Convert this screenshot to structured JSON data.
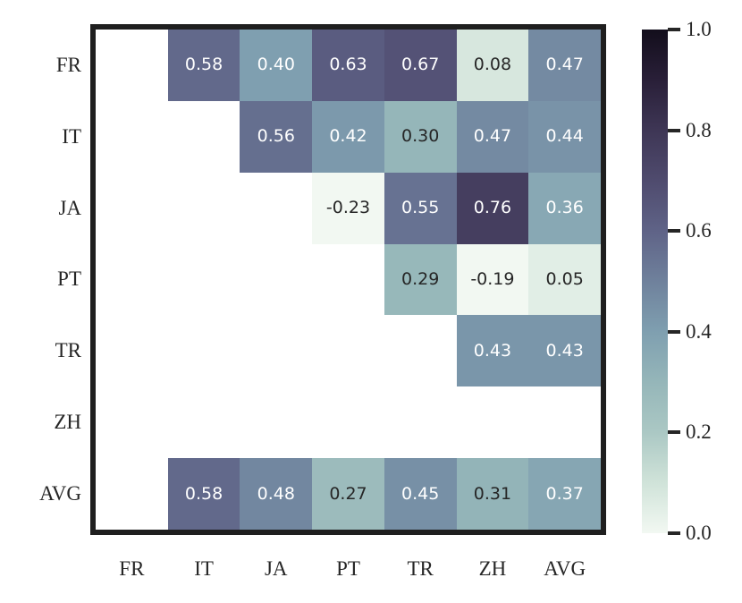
{
  "figure": {
    "background": "#ffffff",
    "spine_color": "#1f1f1f",
    "label_color": "#262626"
  },
  "chart_data": {
    "type": "heatmap",
    "title": "",
    "xlabel": "",
    "ylabel": "",
    "rows": [
      "FR",
      "IT",
      "JA",
      "PT",
      "TR",
      "ZH",
      "AVG"
    ],
    "columns": [
      "FR",
      "IT",
      "JA",
      "PT",
      "TR",
      "ZH",
      "AVG"
    ],
    "values": [
      [
        null,
        0.58,
        0.4,
        0.63,
        0.67,
        0.08,
        0.47
      ],
      [
        null,
        null,
        0.56,
        0.42,
        0.3,
        0.47,
        0.44
      ],
      [
        null,
        null,
        null,
        -0.23,
        0.55,
        0.76,
        0.36
      ],
      [
        null,
        null,
        null,
        null,
        0.29,
        -0.19,
        0.05
      ],
      [
        null,
        null,
        null,
        null,
        null,
        0.43,
        0.43
      ],
      [
        null,
        null,
        null,
        null,
        null,
        null,
        null
      ],
      [
        null,
        0.58,
        0.48,
        0.27,
        0.45,
        0.31,
        0.37
      ]
    ],
    "value_format_decimals": 2,
    "vmin": 0.0,
    "vmax": 1.0,
    "grid_on": false,
    "empty_cell_color": "#ffffff",
    "annotation_colors": {
      "light": "#ffffff",
      "dark": "#262626"
    },
    "annotation_luminance_threshold": 0.408,
    "colormap_anchors": [
      "#f2f8f2",
      "#d0e3d9",
      "#abc8c4",
      "#95b6b9",
      "#7f9fb0",
      "#6f819c",
      "#5f6387",
      "#4f4b6e",
      "#3e3655",
      "#291f38",
      "#130e1c"
    ],
    "colorbar": {
      "position": "right",
      "tick_labels": [
        "1.0",
        "0.8",
        "0.6",
        "0.4",
        "0.2",
        "0.0"
      ],
      "tick_values": [
        1.0,
        0.8,
        0.6,
        0.4,
        0.2,
        0.0
      ]
    }
  }
}
